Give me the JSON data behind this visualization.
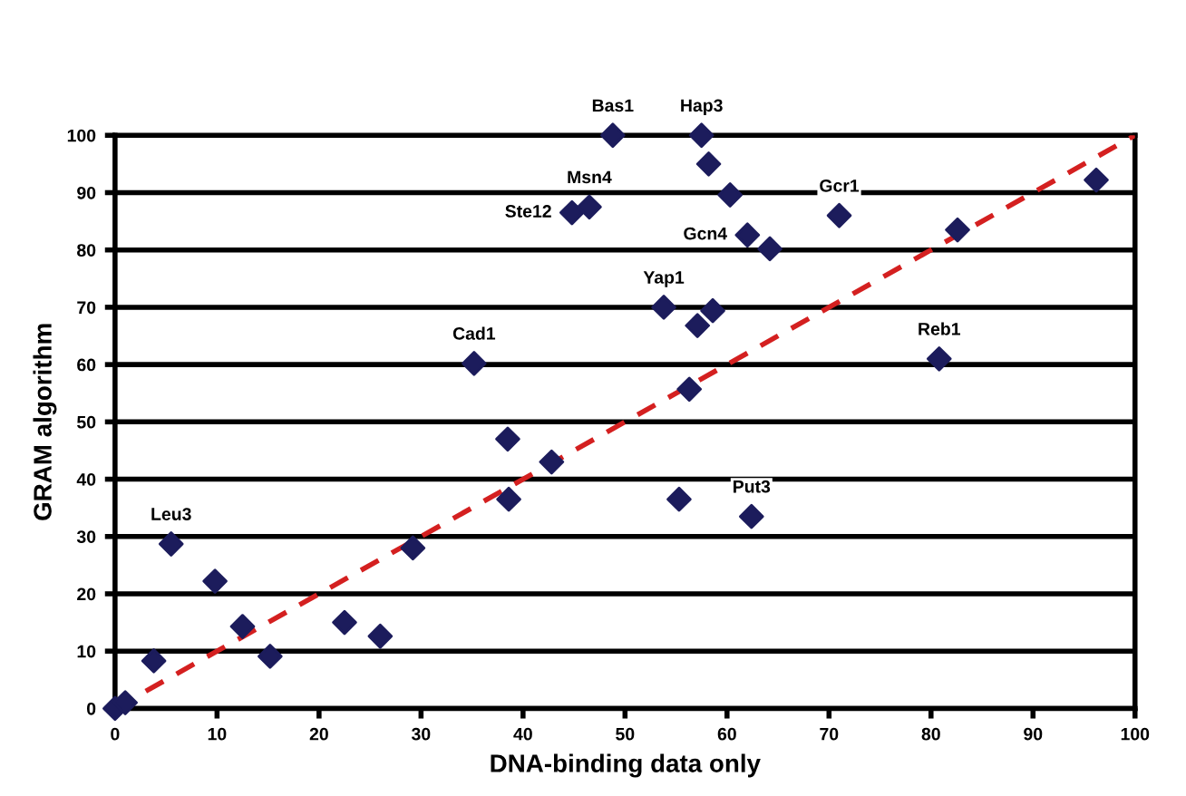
{
  "chart_data": {
    "type": "scatter",
    "xlabel": "DNA-binding data only",
    "ylabel": "GRAM algorithm",
    "xlim": [
      0,
      100
    ],
    "ylim": [
      0,
      100
    ],
    "xticks": [
      0,
      10,
      20,
      30,
      40,
      50,
      60,
      70,
      80,
      90,
      100
    ],
    "yticks": [
      0,
      10,
      20,
      30,
      40,
      50,
      60,
      70,
      80,
      90,
      100
    ],
    "grid": "y",
    "marker": "diamond",
    "series": [
      {
        "color": "#1c1c5c",
        "x": [
          0,
          1,
          3.8,
          5.5,
          9.8,
          12.5,
          15.2,
          22.5,
          26,
          29.2,
          35.2,
          38.5,
          38.6,
          42.8,
          44.8,
          46.5,
          48.8,
          55.3,
          56.3,
          53.8,
          57.1,
          58.6,
          57.5,
          58.2,
          60.3,
          62,
          64.2,
          62.4,
          71,
          80.8,
          82.6,
          96.2
        ],
        "values": [
          0,
          1,
          8.3,
          28.7,
          22.2,
          14.3,
          9.1,
          15,
          12.6,
          28,
          60.2,
          47,
          36.5,
          43,
          86.5,
          87.5,
          100,
          36.5,
          55.7,
          70,
          66.8,
          69.4,
          100,
          95,
          89.6,
          82.6,
          80.2,
          33.5,
          86,
          61,
          83.5,
          92.2
        ]
      },
      {
        "type": "line",
        "color": "#d42020",
        "line_style": "dashed",
        "marker": "none",
        "x": [
          0,
          100
        ],
        "values": [
          0,
          100
        ]
      }
    ],
    "annotations": [
      {
        "text": "Bas1",
        "x": 48.8,
        "y": 100
      },
      {
        "text": "Hap3",
        "x": 57.5,
        "y": 100
      },
      {
        "text": "Msn4",
        "x": 46.5,
        "y": 87.5
      },
      {
        "text": "Ste12",
        "x": 44.8,
        "y": 86.5
      },
      {
        "text": "Gcn4",
        "x": 62,
        "y": 82.6
      },
      {
        "text": "Gcr1",
        "x": 71,
        "y": 86
      },
      {
        "text": "Yap1",
        "x": 53.8,
        "y": 70
      },
      {
        "text": "Cad1",
        "x": 35.2,
        "y": 60.2
      },
      {
        "text": "Reb1",
        "x": 80.8,
        "y": 61
      },
      {
        "text": "Leu3",
        "x": 5.5,
        "y": 28.7
      },
      {
        "text": "Put3",
        "x": 62.4,
        "y": 33.5
      }
    ]
  }
}
